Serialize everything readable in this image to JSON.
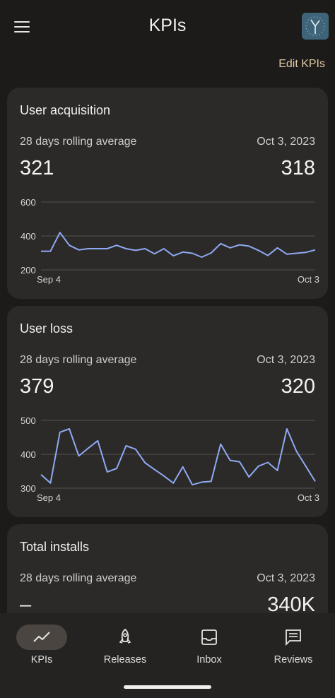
{
  "header": {
    "title": "KPIs",
    "edit_label": "Edit KPIs",
    "menu_icon": "hamburger-menu-icon",
    "app_icon": "app-clock-icon"
  },
  "cards": [
    {
      "title": "User acquisition",
      "subtitle": "28 days rolling average",
      "date": "Oct 3, 2023",
      "left_value": "321",
      "right_value": "318",
      "chart_data": {
        "type": "line",
        "x_start_label": "Sep 4",
        "x_end_label": "Oct 3",
        "y_ticks": [
          "600",
          "400",
          "200"
        ],
        "ylim": [
          200,
          600
        ],
        "values": [
          310,
          310,
          420,
          345,
          318,
          325,
          325,
          325,
          345,
          325,
          315,
          325,
          295,
          325,
          283,
          305,
          298,
          275,
          300,
          355,
          330,
          348,
          340,
          315,
          285,
          330,
          293,
          298,
          303,
          318
        ],
        "color": "#8fa9f2"
      }
    },
    {
      "title": "User loss",
      "subtitle": "28 days rolling average",
      "date": "Oct 3, 2023",
      "left_value": "379",
      "right_value": "320",
      "chart_data": {
        "type": "line",
        "x_start_label": "Sep 4",
        "x_end_label": "Oct 3",
        "y_ticks": [
          "500",
          "400",
          "300"
        ],
        "ylim": [
          300,
          500
        ],
        "values": [
          340,
          315,
          465,
          475,
          395,
          418,
          440,
          348,
          358,
          425,
          415,
          375,
          355,
          336,
          315,
          363,
          310,
          318,
          320,
          430,
          382,
          378,
          333,
          365,
          376,
          352,
          475,
          410,
          365,
          320
        ],
        "color": "#8fa9f2"
      }
    },
    {
      "title": "Total installs",
      "subtitle": "28 days rolling average",
      "date": "Oct 3, 2023",
      "left_value": "–",
      "right_value": "340K"
    }
  ],
  "nav": [
    {
      "label": "KPIs",
      "icon": "trend-chart-icon",
      "active": true
    },
    {
      "label": "Releases",
      "icon": "rocket-icon",
      "active": false
    },
    {
      "label": "Inbox",
      "icon": "inbox-tray-icon",
      "active": false
    },
    {
      "label": "Reviews",
      "icon": "review-message-icon",
      "active": false
    }
  ],
  "colors": {
    "accent": "#8fa9f2",
    "edit_link": "#e0c9a3",
    "card_bg": "#2b2a28",
    "active_pill": "#4a4540"
  }
}
